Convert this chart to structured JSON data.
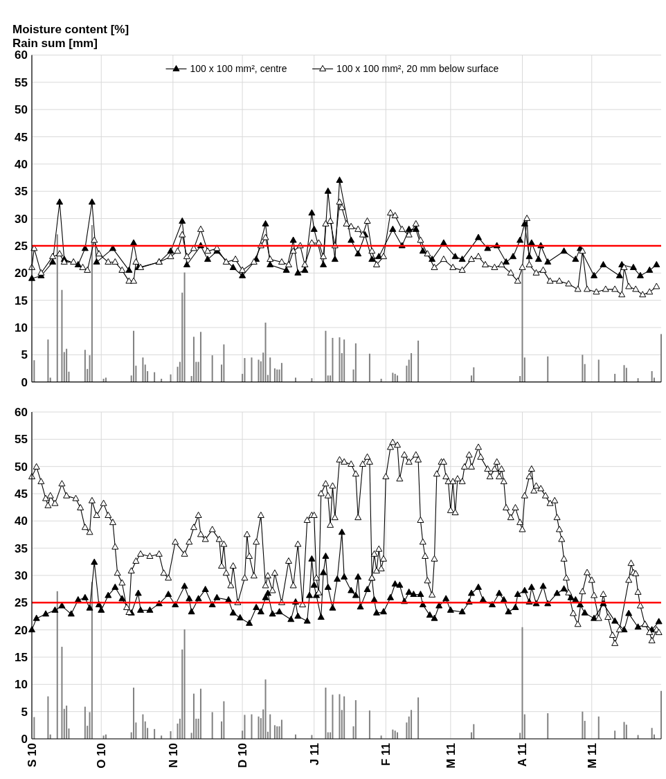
{
  "chart_data": [
    {
      "type": "line",
      "ylabel": "Moisture content [%]\nRain sum [mm]",
      "xlim": [
        "2010-09-01",
        "2011-05-31"
      ],
      "ylim": [
        0,
        60
      ],
      "yticks": [
        0,
        5,
        10,
        15,
        20,
        25,
        30,
        35,
        40,
        45,
        50,
        55,
        60
      ],
      "xticks": [
        {
          "value": "2010-09-01",
          "label": null
        },
        {
          "value": "2010-10-01",
          "label": null
        },
        {
          "value": "2010-11-01",
          "label": null
        },
        {
          "value": "2010-12-01",
          "label": null
        },
        {
          "value": "2011-01-01",
          "label": null
        },
        {
          "value": "2011-02-01",
          "label": null
        },
        {
          "value": "2011-03-01",
          "label": null
        },
        {
          "value": "2011-04-01",
          "label": null
        },
        {
          "value": "2011-05-01",
          "label": null
        }
      ],
      "tick_labels": "y",
      "grid": true,
      "legend": "top",
      "marker": "triangle",
      "line_style": "solid",
      "ref_lines": [
        {
          "axis": "y",
          "value": 25,
          "color": "#ff0000"
        }
      ],
      "series": [
        {
          "type": "bar",
          "color": "#808080",
          "x": [
            "2010-09-02",
            "2010-09-08",
            "2010-09-09",
            "2010-09-12",
            "2010-09-14",
            "2010-09-15",
            "2010-09-16",
            "2010-09-17",
            "2010-09-24",
            "2010-09-25",
            "2010-09-26",
            "2010-09-27",
            "2010-10-02",
            "2010-10-03",
            "2010-10-14",
            "2010-10-15",
            "2010-10-16",
            "2010-10-19",
            "2010-10-20",
            "2010-10-21",
            "2010-10-24",
            "2010-10-27",
            "2010-10-31",
            "2010-11-03",
            "2010-11-04",
            "2010-11-05",
            "2010-11-06",
            "2010-11-09",
            "2010-11-10",
            "2010-11-11",
            "2010-11-12",
            "2010-11-13",
            "2010-11-18",
            "2010-11-22",
            "2010-11-23",
            "2010-12-01",
            "2010-12-02",
            "2010-12-05",
            "2010-12-08",
            "2010-12-09",
            "2010-12-10",
            "2010-12-11",
            "2010-12-12",
            "2010-12-13",
            "2010-12-15",
            "2010-12-16",
            "2010-12-17",
            "2010-12-18",
            "2010-12-24",
            "2010-12-31",
            "2011-01-06",
            "2011-01-07",
            "2011-01-08",
            "2011-01-09",
            "2011-01-12",
            "2011-01-13",
            "2011-01-14",
            "2011-01-18",
            "2011-01-19",
            "2011-01-25",
            "2011-01-30",
            "2011-02-04",
            "2011-02-05",
            "2011-02-06",
            "2011-02-10",
            "2011-02-11",
            "2011-02-12",
            "2011-02-15",
            "2011-03-10",
            "2011-03-11",
            "2011-03-31",
            "2011-04-01",
            "2011-04-02",
            "2011-04-12",
            "2011-04-27",
            "2011-04-28",
            "2011-05-04",
            "2011-05-11",
            "2011-05-15",
            "2011-05-16",
            "2011-05-21",
            "2011-05-27",
            "2011-05-28",
            "2011-05-31"
          ],
          "values": [
            4.0,
            7.8,
            0.8,
            27.1,
            16.9,
            5.5,
            6.1,
            1.9,
            5.9,
            2.4,
            4.9,
            28.8,
            0.6,
            0.8,
            1.2,
            9.4,
            3.0,
            4.5,
            3.2,
            2.0,
            1.8,
            0.6,
            1.4,
            2.8,
            3.7,
            16.4,
            20.1,
            1.1,
            8.3,
            3.7,
            3.7,
            9.2,
            4.9,
            3.2,
            6.9,
            1.5,
            4.4,
            4.5,
            4.1,
            3.8,
            5.4,
            10.9,
            1.3,
            4.5,
            2.5,
            2.3,
            2.3,
            3.5,
            0.8,
            0.7,
            9.4,
            1.2,
            1.2,
            8.1,
            8.2,
            5.3,
            7.8,
            2.3,
            7.1,
            5.2,
            0.6,
            1.7,
            1.5,
            1.2,
            3.0,
            4.1,
            5.3,
            7.6,
            1.2,
            2.7,
            1.1,
            20.5,
            4.5,
            4.7,
            5.0,
            3.3,
            4.1,
            1.5,
            3.1,
            2.6,
            0.7,
            2.0,
            0.8,
            8.8
          ]
        },
        {
          "name": "100 x 100 mm², centre",
          "color": "#000000",
          "x": [
            "2010-09-01",
            "2010-09-05",
            "2010-09-10",
            "2010-09-13",
            "2010-09-15",
            "2010-09-21",
            "2010-09-24",
            "2010-09-27",
            "2010-09-29",
            "2010-10-06",
            "2010-10-13",
            "2010-10-15",
            "2010-10-17",
            "2010-10-26",
            "2010-10-31",
            "2010-11-05",
            "2010-11-07",
            "2010-11-13",
            "2010-11-16",
            "2010-11-20",
            "2010-11-27",
            "2010-12-01",
            "2010-12-07",
            "2010-12-11",
            "2010-12-13",
            "2010-12-20",
            "2010-12-23",
            "2010-12-25",
            "2010-12-28",
            "2010-12-31",
            "2011-01-01",
            "2011-01-05",
            "2011-01-07",
            "2011-01-10",
            "2011-01-12",
            "2011-01-17",
            "2011-01-20",
            "2011-01-23",
            "2011-01-26",
            "2011-01-29",
            "2011-02-04",
            "2011-02-08",
            "2011-02-11",
            "2011-02-14",
            "2011-02-17",
            "2011-02-21",
            "2011-02-26",
            "2011-03-03",
            "2011-03-06",
            "2011-03-13",
            "2011-03-17",
            "2011-03-21",
            "2011-03-25",
            "2011-03-28",
            "2011-03-31",
            "2011-04-02",
            "2011-04-04",
            "2011-04-05",
            "2011-04-08",
            "2011-04-09",
            "2011-04-12",
            "2011-04-19",
            "2011-04-24",
            "2011-04-26",
            "2011-05-02",
            "2011-05-06",
            "2011-05-13",
            "2011-05-14",
            "2011-05-19",
            "2011-05-22",
            "2011-05-26",
            "2011-05-29"
          ],
          "values": [
            19,
            19.5,
            22,
            33,
            22.5,
            21.5,
            24.5,
            33,
            22,
            24.5,
            20.5,
            25.5,
            21,
            22,
            24,
            29.5,
            21.5,
            25,
            22.5,
            24,
            21,
            19.5,
            22.5,
            29,
            21.5,
            20.5,
            26,
            20,
            20.5,
            31,
            28,
            21.5,
            35,
            22.5,
            37,
            26,
            23.5,
            27,
            22.5,
            23,
            28,
            25,
            28,
            28,
            24,
            22.5,
            25.5,
            23,
            22.5,
            26.5,
            24.5,
            25,
            22,
            23,
            26,
            29,
            23,
            25.5,
            22.5,
            25,
            22,
            24,
            22.5,
            24.5,
            19.5,
            21.5,
            19.5,
            21.5,
            21,
            19.5,
            20.5,
            21.5
          ]
        },
        {
          "name": "100 x 100 mm², 20 mm below surface",
          "color": "#ffffff",
          "x": [
            "2010-09-01",
            "2010-09-02",
            "2010-09-05",
            "2010-09-10",
            "2010-09-13",
            "2010-09-15",
            "2010-09-19",
            "2010-09-23",
            "2010-09-25",
            "2010-09-28",
            "2010-09-30",
            "2010-10-04",
            "2010-10-07",
            "2010-10-10",
            "2010-10-13",
            "2010-10-15",
            "2010-10-16",
            "2010-10-18",
            "2010-10-26",
            "2010-10-31",
            "2010-11-03",
            "2010-11-05",
            "2010-11-07",
            "2010-11-10",
            "2010-11-13",
            "2010-11-16",
            "2010-11-20",
            "2010-11-24",
            "2010-11-28",
            "2010-12-01",
            "2010-12-06",
            "2010-12-09",
            "2010-12-11",
            "2010-12-13",
            "2010-12-18",
            "2010-12-21",
            "2010-12-23",
            "2010-12-26",
            "2010-12-28",
            "2010-12-31",
            "2011-01-03",
            "2011-01-05",
            "2011-01-06",
            "2011-01-08",
            "2011-01-10",
            "2011-01-12",
            "2011-01-13",
            "2011-01-15",
            "2011-01-17",
            "2011-01-20",
            "2011-01-22",
            "2011-01-24",
            "2011-01-26",
            "2011-01-28",
            "2011-01-31",
            "2011-02-03",
            "2011-02-05",
            "2011-02-08",
            "2011-02-11",
            "2011-02-14",
            "2011-02-16",
            "2011-02-19",
            "2011-02-22",
            "2011-02-26",
            "2011-03-02",
            "2011-03-06",
            "2011-03-10",
            "2011-03-13",
            "2011-03-16",
            "2011-03-20",
            "2011-03-23",
            "2011-03-27",
            "2011-03-30",
            "2011-04-01",
            "2011-04-03",
            "2011-04-04",
            "2011-04-07",
            "2011-04-10",
            "2011-04-13",
            "2011-04-17",
            "2011-04-21",
            "2011-04-25",
            "2011-04-27",
            "2011-04-29",
            "2011-05-03",
            "2011-05-07",
            "2011-05-11",
            "2011-05-14",
            "2011-05-15",
            "2011-05-17",
            "2011-05-20",
            "2011-05-23",
            "2011-05-26",
            "2011-05-29"
          ],
          "values": [
            21,
            24.5,
            20,
            23,
            23.5,
            22,
            22,
            21,
            20.5,
            26,
            23.5,
            22,
            22,
            20.5,
            18.5,
            18.5,
            22,
            21,
            22,
            23,
            24,
            27,
            23,
            24.5,
            28,
            24,
            24.5,
            22,
            22.5,
            20.5,
            22,
            25,
            26.5,
            22.5,
            22,
            21.5,
            24,
            25,
            21.5,
            25.5,
            25.5,
            23,
            29,
            29.5,
            25,
            33,
            32,
            29,
            28.5,
            28,
            27,
            29.5,
            24,
            21.5,
            23,
            31,
            30.5,
            28,
            27,
            29,
            26,
            23.5,
            21,
            22.5,
            21,
            20.5,
            22.5,
            23,
            21.5,
            21,
            21.5,
            20,
            18.5,
            21,
            30,
            21.5,
            20,
            20.5,
            18.5,
            18.5,
            18,
            17,
            24,
            17,
            16.5,
            17,
            17,
            16,
            21,
            17.5,
            17,
            16,
            16.5,
            17.5
          ]
        }
      ]
    },
    {
      "type": "line",
      "xlim": [
        "2010-09-01",
        "2011-05-31"
      ],
      "ylim": [
        0,
        60
      ],
      "yticks": [
        0,
        5,
        10,
        15,
        20,
        25,
        30,
        35,
        40,
        45,
        50,
        55,
        60
      ],
      "xticks": [
        {
          "value": "2010-09-01",
          "label": "S 10"
        },
        {
          "value": "2010-10-01",
          "label": "O 10"
        },
        {
          "value": "2010-11-01",
          "label": "N 10"
        },
        {
          "value": "2010-12-01",
          "label": "D 10"
        },
        {
          "value": "2011-01-01",
          "label": "J 11"
        },
        {
          "value": "2011-02-01",
          "label": "F 11"
        },
        {
          "value": "2011-03-01",
          "label": "M 11"
        },
        {
          "value": "2011-04-01",
          "label": "A 11"
        },
        {
          "value": "2011-05-01",
          "label": "M 11"
        }
      ],
      "grid": true,
      "marker": "triangle",
      "line_style": "solid",
      "ref_lines": [
        {
          "axis": "y",
          "value": 25,
          "color": "#ff0000"
        }
      ],
      "series": [
        {
          "type": "bar",
          "color": "#808080",
          "x": [
            "2010-09-02",
            "2010-09-08",
            "2010-09-09",
            "2010-09-12",
            "2010-09-14",
            "2010-09-15",
            "2010-09-16",
            "2010-09-17",
            "2010-09-24",
            "2010-09-25",
            "2010-09-26",
            "2010-09-27",
            "2010-10-02",
            "2010-10-03",
            "2010-10-14",
            "2010-10-15",
            "2010-10-16",
            "2010-10-19",
            "2010-10-20",
            "2010-10-21",
            "2010-10-24",
            "2010-10-27",
            "2010-10-31",
            "2010-11-03",
            "2010-11-04",
            "2010-11-05",
            "2010-11-06",
            "2010-11-09",
            "2010-11-10",
            "2010-11-11",
            "2010-11-12",
            "2010-11-13",
            "2010-11-18",
            "2010-11-22",
            "2010-11-23",
            "2010-12-01",
            "2010-12-02",
            "2010-12-05",
            "2010-12-08",
            "2010-12-09",
            "2010-12-10",
            "2010-12-11",
            "2010-12-12",
            "2010-12-13",
            "2010-12-15",
            "2010-12-16",
            "2010-12-17",
            "2010-12-18",
            "2010-12-24",
            "2010-12-31",
            "2011-01-06",
            "2011-01-07",
            "2011-01-08",
            "2011-01-09",
            "2011-01-12",
            "2011-01-13",
            "2011-01-14",
            "2011-01-18",
            "2011-01-19",
            "2011-01-25",
            "2011-01-30",
            "2011-02-04",
            "2011-02-05",
            "2011-02-06",
            "2011-02-10",
            "2011-02-11",
            "2011-02-12",
            "2011-02-15",
            "2011-03-10",
            "2011-03-11",
            "2011-03-31",
            "2011-04-01",
            "2011-04-02",
            "2011-04-12",
            "2011-04-27",
            "2011-04-28",
            "2011-05-04",
            "2011-05-11",
            "2011-05-15",
            "2011-05-16",
            "2011-05-21",
            "2011-05-27",
            "2011-05-28",
            "2011-05-31"
          ],
          "values": [
            4.0,
            7.8,
            0.8,
            27.1,
            16.9,
            5.5,
            6.1,
            1.9,
            5.9,
            2.4,
            4.9,
            28.8,
            0.6,
            0.8,
            1.2,
            9.4,
            3.0,
            4.5,
            3.2,
            2.0,
            1.8,
            0.6,
            1.4,
            2.8,
            3.7,
            16.4,
            20.1,
            1.1,
            8.3,
            3.7,
            3.7,
            9.2,
            4.9,
            3.2,
            6.9,
            1.5,
            4.4,
            4.5,
            4.1,
            3.8,
            5.4,
            10.9,
            1.3,
            4.5,
            2.5,
            2.3,
            2.3,
            3.5,
            0.8,
            0.7,
            9.4,
            1.2,
            1.2,
            8.1,
            8.2,
            5.3,
            7.8,
            2.3,
            7.1,
            5.2,
            0.6,
            1.7,
            1.5,
            1.2,
            3.0,
            4.1,
            5.3,
            7.6,
            1.2,
            2.7,
            1.1,
            20.5,
            4.5,
            4.7,
            5.0,
            3.3,
            4.1,
            1.5,
            3.1,
            2.6,
            0.7,
            2.0,
            0.8,
            8.8
          ]
        },
        {
          "color": "#000000",
          "x": [
            "2010-09-01",
            "2010-09-03",
            "2010-09-07",
            "2010-09-11",
            "2010-09-14",
            "2010-09-18",
            "2010-09-21",
            "2010-09-24",
            "2010-09-26",
            "2010-09-28",
            "2010-09-30",
            "2010-10-01",
            "2010-10-04",
            "2010-10-07",
            "2010-10-10",
            "2010-10-14",
            "2010-10-17",
            "2010-10-18",
            "2010-10-22",
            "2010-10-26",
            "2010-10-30",
            "2010-11-02",
            "2010-11-06",
            "2010-11-08",
            "2010-11-09",
            "2010-11-12",
            "2010-11-15",
            "2010-11-18",
            "2010-11-20",
            "2010-11-25",
            "2010-11-27",
            "2010-11-30",
            "2010-12-04",
            "2010-12-07",
            "2010-12-09",
            "2010-12-11",
            "2010-12-12",
            "2010-12-14",
            "2010-12-17",
            "2010-12-22",
            "2010-12-24",
            "2010-12-25",
            "2010-12-29",
            "2010-12-30",
            "2010-12-31",
            "2011-01-01",
            "2011-01-02",
            "2011-01-04",
            "2011-01-05",
            "2011-01-06",
            "2011-01-07",
            "2011-01-09",
            "2011-01-11",
            "2011-01-13",
            "2011-01-14",
            "2011-01-17",
            "2011-01-19",
            "2011-01-20",
            "2011-01-21",
            "2011-01-24",
            "2011-01-26",
            "2011-01-27",
            "2011-01-28",
            "2011-01-31",
            "2011-02-03",
            "2011-02-05",
            "2011-02-07",
            "2011-02-09",
            "2011-02-11",
            "2011-02-13",
            "2011-02-16",
            "2011-02-17",
            "2011-02-20",
            "2011-02-22",
            "2011-02-24",
            "2011-02-27",
            "2011-03-01",
            "2011-03-06",
            "2011-03-09",
            "2011-03-10",
            "2011-03-13",
            "2011-03-15",
            "2011-03-19",
            "2011-03-22",
            "2011-03-24",
            "2011-03-26",
            "2011-03-29",
            "2011-03-30",
            "2011-04-02",
            "2011-04-04",
            "2011-04-05",
            "2011-04-07",
            "2011-04-10",
            "2011-04-12",
            "2011-04-16",
            "2011-04-19",
            "2011-04-22",
            "2011-04-24",
            "2011-04-26",
            "2011-04-28",
            "2011-05-02",
            "2011-05-06",
            "2011-05-11",
            "2011-05-15",
            "2011-05-17",
            "2011-05-21",
            "2011-05-24",
            "2011-05-27",
            "2011-05-30"
          ],
          "values": [
            20,
            22.1,
            22.9,
            23.6,
            24.4,
            22.9,
            25.5,
            25.9,
            24,
            32.4,
            24.6,
            23.6,
            26.3,
            27.8,
            25.7,
            23.1,
            26.7,
            23.6,
            23.6,
            24.8,
            26.5,
            24.6,
            28,
            25.7,
            23.3,
            25.7,
            27.4,
            24.6,
            25.9,
            25.5,
            23.1,
            22.2,
            21.2,
            24.1,
            23.3,
            25.9,
            26.7,
            22.9,
            23.3,
            21.9,
            25.1,
            22.5,
            21.6,
            26.3,
            33,
            28.2,
            26.3,
            22.3,
            30.5,
            33.5,
            27.8,
            24,
            29.3,
            37.9,
            29.7,
            27.2,
            26.3,
            29.7,
            24.2,
            27.4,
            29.5,
            25.5,
            23.1,
            23.3,
            25.9,
            28.4,
            28.2,
            25.2,
            26.9,
            26.5,
            26.5,
            24.6,
            22.7,
            22.1,
            24.4,
            25.7,
            23.6,
            23.3,
            25.1,
            26.7,
            27.8,
            25.5,
            24.6,
            26.7,
            25.5,
            23.3,
            24.1,
            26.5,
            27.2,
            25.1,
            27.8,
            24.8,
            28,
            24.8,
            26.7,
            27.5,
            25.9,
            25.5,
            24.6,
            23.1,
            22.1,
            24.8,
            21.6,
            20,
            23,
            20.5,
            21,
            20,
            21.5
          ]
        },
        {
          "color": "#ffffff",
          "x": [
            "2010-09-01",
            "2010-09-03",
            "2010-09-05",
            "2010-09-07",
            "2010-09-08",
            "2010-09-09",
            "2010-09-11",
            "2010-09-14",
            "2010-09-16",
            "2010-09-20",
            "2010-09-22",
            "2010-09-24",
            "2010-09-26",
            "2010-09-27",
            "2010-09-29",
            "2010-10-02",
            "2010-10-04",
            "2010-10-06",
            "2010-10-07",
            "2010-10-08",
            "2010-10-10",
            "2010-10-12",
            "2010-10-13",
            "2010-10-14",
            "2010-10-16",
            "2010-10-18",
            "2010-10-22",
            "2010-10-26",
            "2010-10-28",
            "2010-10-30",
            "2010-11-02",
            "2010-11-06",
            "2010-11-08",
            "2010-11-10",
            "2010-11-12",
            "2010-11-13",
            "2010-11-15",
            "2010-11-18",
            "2010-11-21",
            "2010-11-22",
            "2010-11-23",
            "2010-11-24",
            "2010-11-26",
            "2010-11-27",
            "2010-11-29",
            "2010-12-02",
            "2010-12-03",
            "2010-12-04",
            "2010-12-06",
            "2010-12-07",
            "2010-12-09",
            "2010-12-11",
            "2010-12-12",
            "2010-12-14",
            "2010-12-15",
            "2010-12-18",
            "2010-12-21",
            "2010-12-23",
            "2010-12-25",
            "2010-12-27",
            "2010-12-29",
            "2010-12-31",
            "2011-01-01",
            "2011-01-02",
            "2011-01-03",
            "2011-01-04",
            "2011-01-06",
            "2011-01-07",
            "2011-01-08",
            "2011-01-09",
            "2011-01-10",
            "2011-01-12",
            "2011-01-14",
            "2011-01-17",
            "2011-01-19",
            "2011-01-20",
            "2011-01-22",
            "2011-01-24",
            "2011-01-25",
            "2011-01-26",
            "2011-01-27",
            "2011-01-28",
            "2011-01-29",
            "2011-01-30",
            "2011-01-31",
            "2011-02-01",
            "2011-02-03",
            "2011-02-04",
            "2011-02-06",
            "2011-02-07",
            "2011-02-09",
            "2011-02-11",
            "2011-02-14",
            "2011-02-15",
            "2011-02-16",
            "2011-02-17",
            "2011-02-18",
            "2011-02-19",
            "2011-02-21",
            "2011-02-22",
            "2011-02-23",
            "2011-02-25",
            "2011-02-26",
            "2011-02-27",
            "2011-02-28",
            "2011-03-01",
            "2011-03-02",
            "2011-03-03",
            "2011-03-04",
            "2011-03-06",
            "2011-03-07",
            "2011-03-09",
            "2011-03-10",
            "2011-03-13",
            "2011-03-14",
            "2011-03-17",
            "2011-03-18",
            "2011-03-20",
            "2011-03-21",
            "2011-03-22",
            "2011-03-23",
            "2011-03-24",
            "2011-03-25",
            "2011-03-27",
            "2011-03-29",
            "2011-03-31",
            "2011-04-01",
            "2011-04-02",
            "2011-04-04",
            "2011-04-05",
            "2011-04-06",
            "2011-04-07",
            "2011-04-09",
            "2011-04-11",
            "2011-04-13",
            "2011-04-15",
            "2011-04-16",
            "2011-04-17",
            "2011-04-18",
            "2011-04-19",
            "2011-04-20",
            "2011-04-21",
            "2011-04-23",
            "2011-04-25",
            "2011-04-27",
            "2011-04-29",
            "2011-05-01",
            "2011-05-02",
            "2011-05-04",
            "2011-05-06",
            "2011-05-08",
            "2011-05-10",
            "2011-05-11",
            "2011-05-13",
            "2011-05-17",
            "2011-05-18",
            "2011-05-19",
            "2011-05-20",
            "2011-05-21",
            "2011-05-22",
            "2011-05-24",
            "2011-05-26",
            "2011-05-27",
            "2011-05-29",
            "2011-05-30"
          ],
          "values": [
            48.1,
            49.9,
            47.2,
            44.1,
            42.8,
            44.6,
            43.2,
            46.8,
            44.6,
            44.1,
            42.4,
            38.8,
            37.9,
            43.7,
            41,
            43.2,
            41,
            39.7,
            35.2,
            30.4,
            28.6,
            24.1,
            23.2,
            30.8,
            32.6,
            33.9,
            33.5,
            33.9,
            30.4,
            29.5,
            36.1,
            33.9,
            36.1,
            38.8,
            41,
            37.5,
            36.6,
            38.4,
            36.6,
            31.7,
            35.7,
            30.4,
            28.1,
            31.7,
            25,
            29.5,
            37.5,
            33.5,
            29.9,
            36.1,
            41,
            28.1,
            29.9,
            27.2,
            30.4,
            25,
            32.6,
            28.1,
            35.7,
            24.6,
            40.1,
            41,
            41,
            29.5,
            26.8,
            45,
            46.8,
            44.6,
            39.2,
            46.4,
            40.6,
            51.2,
            50.8,
            50.4,
            48.6,
            40.6,
            50.4,
            51.7,
            50.8,
            29.5,
            33.9,
            30.8,
            34.8,
            31.2,
            33,
            48.1,
            53.5,
            54.4,
            53.9,
            47.7,
            52.1,
            50.8,
            52.1,
            51.2,
            40.1,
            36.1,
            33.5,
            29,
            26.4,
            33,
            48.6,
            50.8,
            50.8,
            48.1,
            47.2,
            41.9,
            47.2,
            41.5,
            47.7,
            47.2,
            49.9,
            52.1,
            49.9,
            53.5,
            51.7,
            49.5,
            48.1,
            49.5,
            50.8,
            48.1,
            49.5,
            47.2,
            42.4,
            40.6,
            42.4,
            39.7,
            38.4,
            44.6,
            48.1,
            49.5,
            45.5,
            46.4,
            45.9,
            44.6,
            43.2,
            43.7,
            40.6,
            38.4,
            36.6,
            33,
            29.5,
            26.8,
            23,
            21,
            27,
            30.5,
            29.1,
            26.3,
            22.1,
            26.5,
            22.3,
            19,
            17.5,
            20,
            29.1,
            32.2,
            30.5,
            30.3,
            26.9,
            24.4,
            21,
            19.5,
            18,
            20,
            19.5
          ]
        }
      ]
    }
  ]
}
